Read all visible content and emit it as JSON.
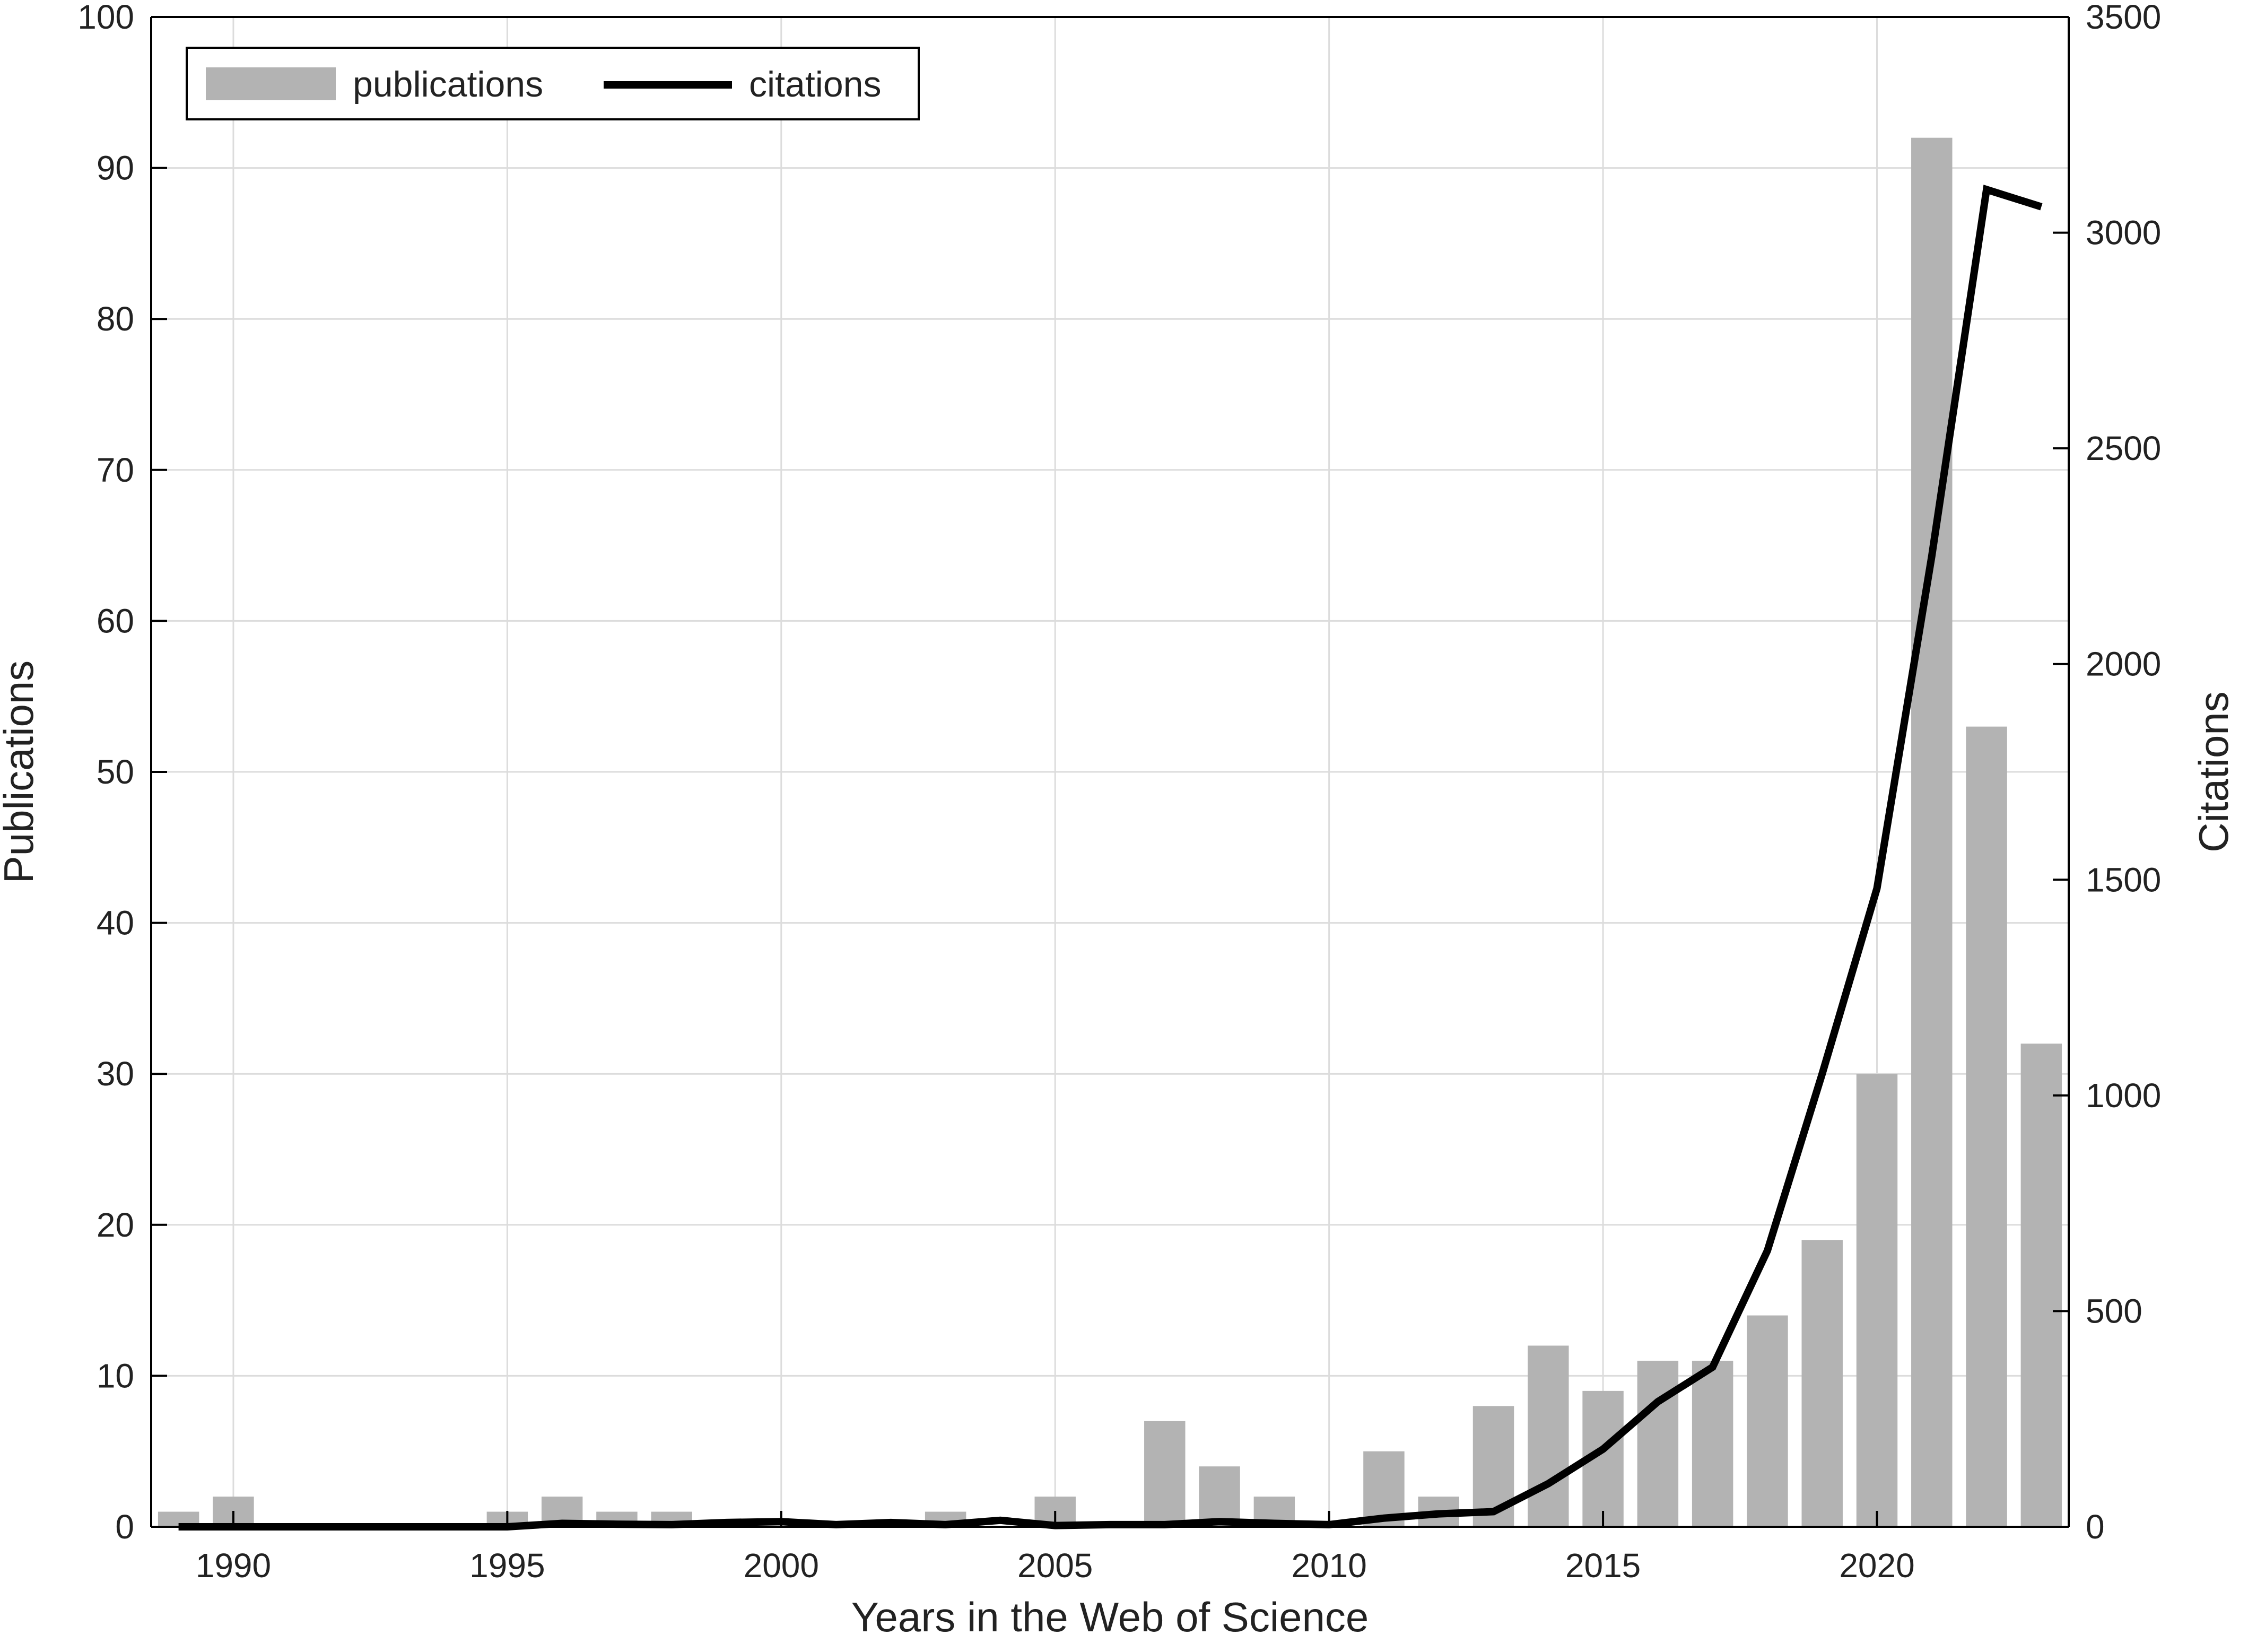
{
  "chart_data": {
    "type": "bar",
    "title": "",
    "xlabel": "Years in the Web of Science",
    "ylabel": "Publications",
    "y2label": "Citations",
    "xlim": [
      1988.5,
      2023.5
    ],
    "ylim": [
      0,
      100
    ],
    "y2lim": [
      0,
      3500
    ],
    "grid": true,
    "legend_position": "top-left",
    "x_ticks": [
      1990,
      1995,
      2000,
      2005,
      2010,
      2015,
      2020
    ],
    "y_ticks": [
      0,
      10,
      20,
      30,
      40,
      50,
      60,
      70,
      80,
      90,
      100
    ],
    "y2_ticks": [
      0,
      500,
      1000,
      1500,
      2000,
      2500,
      3000,
      3500
    ],
    "x": [
      1989,
      1990,
      1991,
      1992,
      1993,
      1994,
      1995,
      1996,
      1997,
      1998,
      1999,
      2000,
      2001,
      2002,
      2003,
      2004,
      2005,
      2006,
      2007,
      2008,
      2009,
      2010,
      2011,
      2012,
      2013,
      2014,
      2015,
      2016,
      2017,
      2018,
      2019,
      2020,
      2021,
      2022,
      2023
    ],
    "series": [
      {
        "name": "publications",
        "type": "bar",
        "axis": "left",
        "color": "#b3b3b3",
        "values": [
          1,
          2,
          0,
          0,
          0,
          0,
          1,
          2,
          1,
          1,
          0,
          0,
          0,
          0,
          1,
          0,
          2,
          0,
          7,
          4,
          2,
          0,
          5,
          2,
          8,
          12,
          9,
          11,
          11,
          14,
          19,
          30,
          92,
          53,
          32
        ]
      },
      {
        "name": "citations",
        "type": "line",
        "axis": "right",
        "color": "#000000",
        "values": [
          0,
          0,
          0,
          0,
          0,
          0,
          0,
          8,
          6,
          5,
          10,
          12,
          5,
          10,
          5,
          15,
          3,
          5,
          5,
          12,
          8,
          5,
          20,
          30,
          35,
          100,
          180,
          290,
          370,
          640,
          1050,
          1480,
          2250,
          3100,
          3060
        ]
      }
    ]
  }
}
